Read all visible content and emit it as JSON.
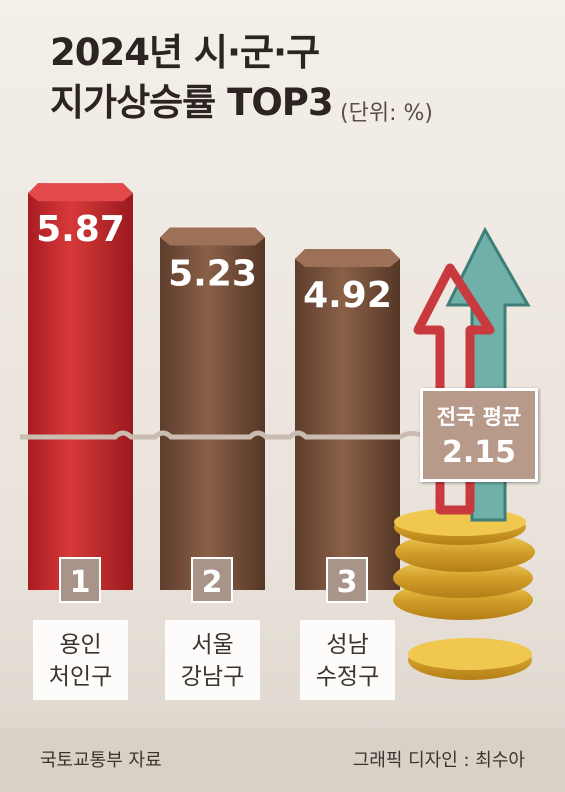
{
  "title_line1": "2024년 시·군·구",
  "title_line2": "지가상승률 TOP3",
  "unit": "(단위: %)",
  "source": "국토교통부 자료",
  "credit": "그래픽 디자인 : 최수아",
  "average_label": "전국 평균",
  "average_value": "2.15",
  "colors": {
    "top": "#c8292b",
    "others": "#7a5440",
    "arrow_red": "#c83a3e",
    "arrow_teal": "#6fb0a8",
    "gold": "#d6a932"
  },
  "chart_data": {
    "type": "bar",
    "categories": [
      "용인 처인구",
      "서울 강남구",
      "성남 수정구"
    ],
    "category_lines": [
      [
        "용인",
        "처인구"
      ],
      [
        "서울",
        "강남구"
      ],
      [
        "성남",
        "수정구"
      ]
    ],
    "ranks": [
      "1",
      "2",
      "3"
    ],
    "values": [
      5.87,
      5.23,
      4.92
    ],
    "value_labels": [
      "5.87",
      "5.23",
      "4.92"
    ],
    "reference_line": {
      "value": 2.15,
      "label": "전국 평균"
    },
    "title": "2024년 시·군·구 지가상승률 TOP3",
    "unit": "%"
  }
}
